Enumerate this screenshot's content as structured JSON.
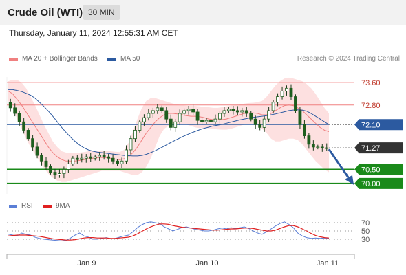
{
  "header": {
    "title": "Crude Oil (WTI)",
    "timeframe": "30 MIN"
  },
  "datetime": "Thursday, January 11, 2024 12:55:31 AM CET",
  "legend": {
    "ma20": {
      "label": "MA 20 + Bollinger Bands",
      "color": "#f08080"
    },
    "ma50": {
      "label": "MA 50",
      "color": "#2c5aa0"
    }
  },
  "credit": "Research © 2024 Trading Central",
  "rsi_legend": {
    "rsi": {
      "label": "RSI",
      "color": "#5b7fd6"
    },
    "ma9": {
      "label": "9MA",
      "color": "#e02020"
    }
  },
  "chart_data": [
    {
      "type": "candlestick",
      "x_ticks": [
        "Jan 9",
        "Jan 10",
        "Jan 11"
      ],
      "ylim": [
        69.8,
        73.85
      ],
      "levels": [
        {
          "label": "73.60",
          "value": 73.6,
          "kind": "resistance"
        },
        {
          "label": "72.80",
          "value": 72.8,
          "kind": "resistance"
        },
        {
          "label": "72.10",
          "value": 72.1,
          "kind": "pivot"
        },
        {
          "label": "71.27",
          "value": 71.27,
          "kind": "last_price"
        },
        {
          "label": "70.50",
          "value": 70.5,
          "kind": "support"
        },
        {
          "label": "70.00",
          "value": 70.0,
          "kind": "support"
        }
      ],
      "forecast": {
        "from": 71.27,
        "to": 70.0,
        "direction": "down"
      },
      "close_path": [
        72.9,
        72.7,
        72.5,
        72.2,
        71.9,
        71.6,
        71.3,
        71.0,
        70.8,
        70.6,
        70.4,
        70.3,
        70.35,
        70.5,
        70.7,
        70.9,
        70.85,
        70.9,
        70.95,
        70.9,
        70.95,
        71.0,
        70.95,
        70.9,
        70.8,
        70.7,
        70.8,
        71.2,
        71.6,
        71.9,
        72.2,
        72.35,
        72.5,
        72.6,
        72.7,
        72.6,
        72.3,
        72.0,
        72.2,
        72.5,
        72.6,
        72.65,
        72.55,
        72.25,
        72.2,
        72.25,
        72.2,
        72.3,
        72.5,
        72.6,
        72.65,
        72.6,
        72.55,
        72.6,
        72.5,
        72.3,
        72.1,
        72.0,
        72.3,
        72.6,
        72.9,
        73.1,
        73.3,
        73.4,
        73.1,
        72.6,
        72.1,
        71.7,
        71.4,
        71.3,
        71.3,
        71.27,
        71.27
      ],
      "ma20_path": [
        73.3,
        73.2,
        73.0,
        72.8,
        72.55,
        72.3,
        72.05,
        71.8,
        71.55,
        71.3,
        71.1,
        70.95,
        70.85,
        70.8,
        70.8,
        70.8,
        70.82,
        70.85,
        70.88,
        70.9,
        70.92,
        70.93,
        70.92,
        70.9,
        70.87,
        70.85,
        70.88,
        70.95,
        71.1,
        71.3,
        71.55,
        71.8,
        72.0,
        72.2,
        72.35,
        72.45,
        72.5,
        72.5,
        72.48,
        72.45,
        72.42,
        72.4,
        72.4,
        72.38,
        72.35,
        72.3,
        72.28,
        72.27,
        72.28,
        72.3,
        72.35,
        72.4,
        72.45,
        72.5,
        72.52,
        72.52,
        72.5,
        72.45,
        72.45,
        72.5,
        72.6,
        72.7,
        72.78,
        72.8,
        72.78,
        72.7,
        72.6,
        72.45,
        72.3,
        72.15,
        72.0,
        71.9,
        71.85
      ],
      "upper_band_path": [
        73.65,
        73.7,
        73.7,
        73.6,
        73.4,
        73.1,
        72.8,
        72.45,
        72.1,
        71.8,
        71.5,
        71.3,
        71.15,
        71.1,
        71.08,
        71.08,
        71.1,
        71.12,
        71.15,
        71.15,
        71.17,
        71.18,
        71.17,
        71.15,
        71.13,
        71.12,
        71.2,
        71.45,
        71.85,
        72.3,
        72.7,
        72.95,
        73.05,
        73.05,
        73.0,
        72.95,
        72.9,
        72.85,
        72.82,
        72.8,
        72.78,
        72.77,
        72.77,
        72.75,
        72.73,
        72.72,
        72.7,
        72.7,
        72.72,
        72.75,
        72.78,
        72.8,
        72.82,
        72.85,
        72.87,
        72.88,
        72.9,
        72.95,
        73.1,
        73.3,
        73.5,
        73.65,
        73.75,
        73.78,
        73.75,
        73.7,
        73.65,
        73.55,
        73.4,
        73.2,
        72.95,
        72.7,
        72.5
      ],
      "lower_band_path": [
        72.95,
        72.7,
        72.3,
        71.95,
        71.6,
        71.3,
        71.05,
        70.8,
        70.55,
        70.35,
        70.2,
        70.1,
        70.05,
        70.05,
        70.1,
        70.15,
        70.2,
        70.25,
        70.3,
        70.35,
        70.4,
        70.45,
        70.45,
        70.45,
        70.45,
        70.45,
        70.4,
        70.35,
        70.3,
        70.3,
        70.4,
        70.6,
        70.9,
        71.3,
        71.7,
        71.95,
        72.05,
        72.1,
        72.12,
        72.12,
        72.1,
        72.05,
        72.0,
        71.98,
        71.98,
        71.97,
        71.95,
        71.93,
        71.92,
        71.92,
        71.95,
        72.0,
        72.05,
        72.1,
        72.12,
        72.12,
        72.08,
        71.95,
        71.8,
        71.6,
        71.5,
        71.5,
        71.55,
        71.6,
        71.6,
        71.55,
        71.4,
        71.2,
        71.0,
        70.8,
        70.65,
        70.5,
        70.4
      ],
      "ma50_path": [
        73.35,
        73.35,
        73.32,
        73.28,
        73.22,
        73.15,
        73.05,
        72.9,
        72.75,
        72.58,
        72.4,
        72.2,
        72.0,
        71.82,
        71.65,
        71.5,
        71.37,
        71.27,
        71.2,
        71.15,
        71.12,
        71.1,
        71.08,
        71.06,
        71.04,
        71.02,
        71.0,
        70.99,
        70.98,
        70.98,
        71.0,
        71.04,
        71.1,
        71.17,
        71.25,
        71.33,
        71.42,
        71.5,
        71.58,
        71.66,
        71.73,
        71.8,
        71.86,
        71.92,
        71.97,
        72.01,
        72.05,
        72.08,
        72.11,
        72.15,
        72.19,
        72.23,
        72.27,
        72.3,
        72.33,
        72.36,
        72.38,
        72.4,
        72.42,
        72.45,
        72.48,
        72.52,
        72.56,
        72.6,
        72.62,
        72.63,
        72.62,
        72.58,
        72.5,
        72.4,
        72.3,
        72.2,
        72.1
      ]
    },
    {
      "type": "line",
      "title": "RSI",
      "y_ticks": [
        70,
        50,
        30
      ],
      "ylim": [
        10,
        85
      ],
      "x_ticks": [
        "Jan 9",
        "Jan 10",
        "Jan 11"
      ],
      "series": [
        {
          "name": "RSI",
          "values": [
            42,
            40,
            38,
            45,
            42,
            40,
            35,
            32,
            30,
            29,
            28,
            27,
            26,
            27,
            33,
            40,
            45,
            38,
            35,
            30,
            30,
            32,
            34,
            31,
            32,
            35,
            38,
            40,
            48,
            58,
            65,
            70,
            72,
            70,
            68,
            60,
            55,
            50,
            54,
            58,
            60,
            57,
            54,
            52,
            50,
            50,
            52,
            55,
            57,
            55,
            58,
            56,
            58,
            60,
            56,
            50,
            45,
            42,
            48,
            55,
            62,
            68,
            72,
            66,
            58,
            45,
            38,
            34,
            32,
            33,
            32,
            33,
            32
          ]
        },
        {
          "name": "9MA",
          "values": [
            38,
            39,
            40,
            40,
            40,
            39,
            38,
            37,
            35,
            33,
            31,
            30,
            29,
            28,
            28,
            29,
            31,
            33,
            34,
            34,
            33,
            33,
            33,
            32,
            32,
            33,
            34,
            35,
            38,
            43,
            49,
            55,
            60,
            64,
            67,
            67,
            66,
            63,
            61,
            59,
            58,
            57,
            56,
            55,
            54,
            53,
            52,
            52,
            53,
            54,
            55,
            55,
            56,
            57,
            57,
            56,
            54,
            52,
            50,
            50,
            52,
            56,
            60,
            63,
            63,
            60,
            55,
            50,
            44,
            39,
            36,
            34,
            33
          ]
        }
      ]
    }
  ]
}
